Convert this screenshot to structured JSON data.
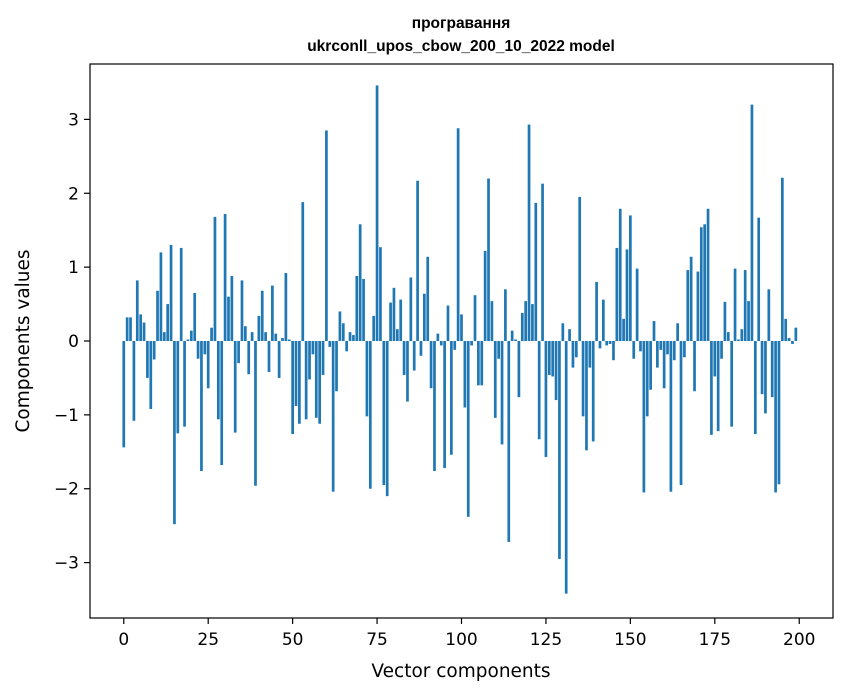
{
  "chart_data": {
    "type": "bar",
    "title_line1": "програвання",
    "title_line2": "ukrconll_upos_cbow_200_10_2022 model",
    "xlabel": "Vector components",
    "ylabel": "Components values",
    "xlim": [
      -10,
      210
    ],
    "ylim": [
      -3.75,
      3.75
    ],
    "xticks": [
      0,
      25,
      50,
      75,
      100,
      125,
      150,
      175,
      200
    ],
    "yticks": [
      -3,
      -2,
      -1,
      0,
      1,
      2,
      3
    ],
    "ytick_labels": [
      "−3",
      "−2",
      "−1",
      "0",
      "1",
      "2",
      "3"
    ],
    "bar_color": "#1f77b4",
    "values": [
      -1.44,
      0.32,
      0.32,
      -1.08,
      0.82,
      0.36,
      0.25,
      -0.5,
      -0.92,
      -0.25,
      0.68,
      1.2,
      0.12,
      0.5,
      1.3,
      -2.48,
      -1.25,
      1.26,
      -1.16,
      0.02,
      0.14,
      0.65,
      -0.24,
      -1.76,
      -0.18,
      -0.64,
      0.18,
      1.68,
      -1.06,
      -1.68,
      1.72,
      0.6,
      0.88,
      -1.24,
      -0.3,
      0.82,
      0.2,
      -0.45,
      0.12,
      -1.96,
      0.34,
      0.68,
      0.12,
      -0.42,
      0.75,
      0.1,
      -0.5,
      0.04,
      0.92,
      0.02,
      -1.26,
      -0.88,
      -1.12,
      1.88,
      -1.06,
      -0.52,
      -0.18,
      -1.04,
      -1.12,
      -0.46,
      2.85,
      -0.08,
      -2.04,
      -0.68,
      0.4,
      0.24,
      -0.14,
      0.12,
      0.08,
      0.88,
      1.58,
      0.84,
      -1.02,
      -2.0,
      0.34,
      3.46,
      1.27,
      -1.95,
      -2.1,
      0.52,
      0.72,
      0.16,
      0.56,
      -0.46,
      -0.82,
      0.86,
      -0.4,
      2.17,
      -0.2,
      0.64,
      1.14,
      -0.64,
      -1.76,
      0.1,
      -0.06,
      -1.72,
      0.48,
      -1.54,
      -0.12,
      2.88,
      0.36,
      -0.9,
      -2.38,
      -0.06,
      0.62,
      -0.6,
      -0.6,
      1.22,
      2.2,
      0.54,
      -1.04,
      -0.24,
      -1.4,
      0.7,
      -2.72,
      0.14,
      0.02,
      -0.76,
      0.38,
      0.54,
      2.93,
      0.5,
      1.87,
      -1.33,
      2.13,
      -1.57,
      -0.46,
      -0.48,
      -0.8,
      -2.95,
      0.24,
      -3.42,
      0.16,
      -0.36,
      -0.22,
      1.95,
      -1.02,
      -1.48,
      -0.36,
      -1.36,
      0.8,
      -0.1,
      0.56,
      -0.06,
      -0.04,
      -0.26,
      1.26,
      1.79,
      0.3,
      1.24,
      1.7,
      -0.24,
      0.98,
      -0.14,
      -2.05,
      -1.02,
      -0.66,
      0.27,
      -0.36,
      -0.12,
      -0.64,
      -0.18,
      -2.04,
      -0.26,
      0.24,
      -1.95,
      -0.22,
      0.96,
      1.14,
      -0.68,
      0.94,
      1.54,
      1.58,
      1.79,
      -1.27,
      -0.48,
      -1.22,
      -0.24,
      0.53,
      0.12,
      -1.16,
      0.98,
      0.02,
      0.16,
      0.96,
      0.54,
      3.2,
      -1.26,
      1.67,
      -0.72,
      -0.98,
      0.7,
      -0.76,
      -2.05,
      -1.94,
      2.21,
      0.3,
      0.04,
      -0.04,
      0.18
    ]
  }
}
